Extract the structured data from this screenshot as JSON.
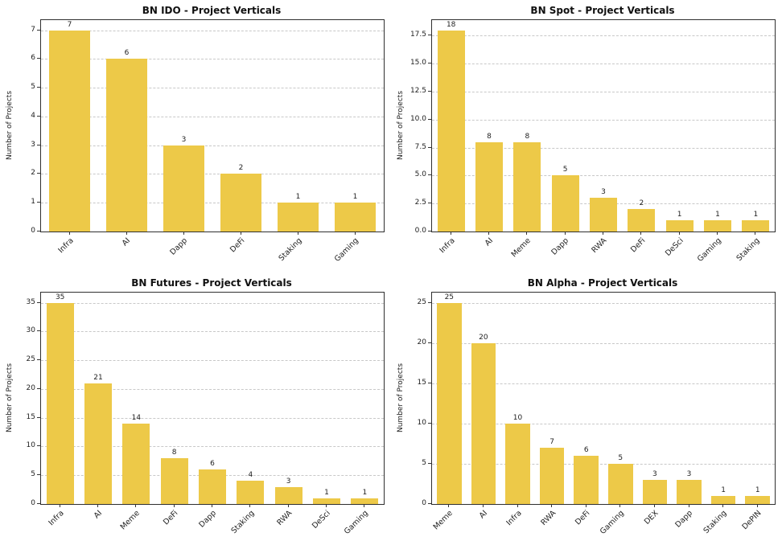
{
  "chart_data": [
    {
      "type": "bar",
      "title": "BN IDO - Project Verticals",
      "ylabel": "Number of Projects",
      "xlabel": "",
      "categories": [
        "Infra",
        "AI",
        "Dapp",
        "DeFi",
        "Staking",
        "Gaming"
      ],
      "values": [
        7,
        6,
        3,
        2,
        1,
        1
      ],
      "ytick_values": [
        0,
        1,
        2,
        3,
        4,
        5,
        6,
        7
      ],
      "ytick_labels": [
        "0",
        "1",
        "2",
        "3",
        "4",
        "5",
        "6",
        "7"
      ],
      "ylim": [
        0,
        7.35
      ],
      "bar_color": "#edc948",
      "grid_color": "#c8c8c8",
      "grid": "dashed-horizontal",
      "legend": false
    },
    {
      "type": "bar",
      "title": "BN Spot - Project Verticals",
      "ylabel": "Number of Projects",
      "xlabel": "",
      "categories": [
        "Infra",
        "AI",
        "Meme",
        "Dapp",
        "RWA",
        "DeFi",
        "DeSci",
        "Gaming",
        "Staking"
      ],
      "values": [
        18,
        8,
        8,
        5,
        3,
        2,
        1,
        1,
        1
      ],
      "ytick_values": [
        0,
        2.5,
        5,
        7.5,
        10,
        12.5,
        15,
        17.5
      ],
      "ytick_labels": [
        "0.0",
        "2.5",
        "5.0",
        "7.5",
        "10.0",
        "12.5",
        "15.0",
        "17.5"
      ],
      "ylim": [
        0,
        18.9
      ],
      "bar_color": "#edc948",
      "grid_color": "#c8c8c8",
      "grid": "dashed-horizontal",
      "legend": false
    },
    {
      "type": "bar",
      "title": "BN Futures - Project Verticals",
      "ylabel": "Number of Projects",
      "xlabel": "",
      "categories": [
        "Infra",
        "AI",
        "Meme",
        "DeFi",
        "Dapp",
        "Staking",
        "RWA",
        "DeSci",
        "Gaming"
      ],
      "values": [
        35,
        21,
        14,
        8,
        6,
        4,
        3,
        1,
        1
      ],
      "ytick_values": [
        0,
        5,
        10,
        15,
        20,
        25,
        30,
        35
      ],
      "ytick_labels": [
        "0",
        "5",
        "10",
        "15",
        "20",
        "25",
        "30",
        "35"
      ],
      "ylim": [
        0,
        36.75
      ],
      "bar_color": "#edc948",
      "grid_color": "#c8c8c8",
      "grid": "dashed-horizontal",
      "legend": false
    },
    {
      "type": "bar",
      "title": "BN Alpha - Project Verticals",
      "ylabel": "Number of Projects",
      "xlabel": "",
      "categories": [
        "Meme",
        "AI",
        "Infra",
        "RWA",
        "DeFi",
        "Gaming",
        "DEX",
        "Dapp",
        "Staking",
        "DePIN"
      ],
      "values": [
        25,
        20,
        10,
        7,
        6,
        5,
        3,
        3,
        1,
        1
      ],
      "ytick_values": [
        0,
        5,
        10,
        15,
        20,
        25
      ],
      "ytick_labels": [
        "0",
        "5",
        "10",
        "15",
        "20",
        "25"
      ],
      "ylim": [
        0,
        26.25
      ],
      "bar_color": "#edc948",
      "grid_color": "#c8c8c8",
      "grid": "dashed-horizontal",
      "legend": false
    }
  ]
}
